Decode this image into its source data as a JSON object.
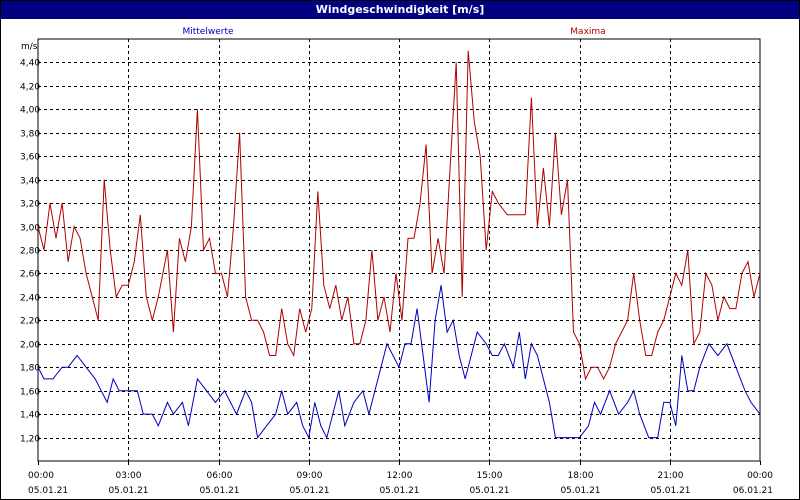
{
  "colors": {
    "titlebar": "#000080",
    "mean": "#0000c0",
    "max": "#b00000",
    "grid": "#000000"
  },
  "chart_data": {
    "type": "line",
    "title": "Windgeschwindigkeit [m/s]",
    "ylabel": "m/s",
    "grid": true,
    "ylim": [
      1.0,
      4.6
    ],
    "yticks": [
      1.2,
      1.4,
      1.6,
      1.8,
      2.0,
      2.2,
      2.4,
      2.6,
      2.8,
      3.0,
      3.2,
      3.4,
      3.6,
      3.8,
      4.0,
      4.2,
      4.4
    ],
    "ytick_labels": [
      "1,20",
      "1,40",
      "1,60",
      "1,80",
      "2,00",
      "2,20",
      "2,40",
      "2,60",
      "2,80",
      "3,00",
      "3,20",
      "3,40",
      "3,60",
      "3,80",
      "4,00",
      "4,20",
      "4,40"
    ],
    "xlim_hours": [
      0,
      24
    ],
    "xticks": [
      {
        "time": "00:00",
        "date": "05.01.21"
      },
      {
        "time": "03:00",
        "date": "05.01.21"
      },
      {
        "time": "06:00",
        "date": "05.01.21"
      },
      {
        "time": "09:00",
        "date": "05.01.21"
      },
      {
        "time": "12:00",
        "date": "05.01.21"
      },
      {
        "time": "15:00",
        "date": "05.01.21"
      },
      {
        "time": "18:00",
        "date": "05.01.21"
      },
      {
        "time": "21:00",
        "date": "05.01.21"
      },
      {
        "time": "00:00",
        "date": "06.01.21"
      }
    ],
    "legend_labels": {
      "mean": "Mittelwerte",
      "max": "Maxima"
    },
    "series": [
      {
        "name": "Mittelwerte",
        "points": [
          [
            0,
            1.8
          ],
          [
            0.2,
            1.7
          ],
          [
            0.5,
            1.7
          ],
          [
            0.8,
            1.8
          ],
          [
            1.0,
            1.8
          ],
          [
            1.3,
            1.9
          ],
          [
            1.6,
            1.8
          ],
          [
            1.9,
            1.7
          ],
          [
            2.1,
            1.6
          ],
          [
            2.3,
            1.5
          ],
          [
            2.5,
            1.7
          ],
          [
            2.7,
            1.6
          ],
          [
            3.0,
            1.6
          ],
          [
            3.3,
            1.6
          ],
          [
            3.5,
            1.4
          ],
          [
            3.8,
            1.4
          ],
          [
            4.0,
            1.3
          ],
          [
            4.3,
            1.5
          ],
          [
            4.5,
            1.4
          ],
          [
            4.8,
            1.5
          ],
          [
            5.0,
            1.3
          ],
          [
            5.3,
            1.7
          ],
          [
            5.6,
            1.6
          ],
          [
            5.9,
            1.5
          ],
          [
            6.2,
            1.6
          ],
          [
            6.4,
            1.5
          ],
          [
            6.6,
            1.4
          ],
          [
            6.9,
            1.6
          ],
          [
            7.1,
            1.5
          ],
          [
            7.3,
            1.2
          ],
          [
            7.6,
            1.3
          ],
          [
            7.9,
            1.4
          ],
          [
            8.1,
            1.6
          ],
          [
            8.3,
            1.4
          ],
          [
            8.6,
            1.5
          ],
          [
            8.8,
            1.3
          ],
          [
            9.0,
            1.2
          ],
          [
            9.2,
            1.5
          ],
          [
            9.4,
            1.3
          ],
          [
            9.6,
            1.2
          ],
          [
            9.8,
            1.4
          ],
          [
            10.0,
            1.6
          ],
          [
            10.2,
            1.3
          ],
          [
            10.5,
            1.5
          ],
          [
            10.8,
            1.6
          ],
          [
            11.0,
            1.4
          ],
          [
            11.2,
            1.6
          ],
          [
            11.4,
            1.8
          ],
          [
            11.6,
            2.0
          ],
          [
            11.8,
            1.9
          ],
          [
            12.0,
            1.8
          ],
          [
            12.2,
            2.0
          ],
          [
            12.4,
            2.0
          ],
          [
            12.6,
            2.3
          ],
          [
            12.8,
            1.9
          ],
          [
            13.0,
            1.5
          ],
          [
            13.2,
            2.2
          ],
          [
            13.4,
            2.5
          ],
          [
            13.6,
            2.1
          ],
          [
            13.8,
            2.2
          ],
          [
            14.0,
            1.9
          ],
          [
            14.2,
            1.7
          ],
          [
            14.4,
            1.9
          ],
          [
            14.6,
            2.1
          ],
          [
            14.9,
            2.0
          ],
          [
            15.1,
            1.9
          ],
          [
            15.3,
            1.9
          ],
          [
            15.5,
            2.0
          ],
          [
            15.8,
            1.8
          ],
          [
            16.0,
            2.1
          ],
          [
            16.2,
            1.7
          ],
          [
            16.4,
            2.0
          ],
          [
            16.6,
            1.9
          ],
          [
            16.8,
            1.7
          ],
          [
            17.0,
            1.5
          ],
          [
            17.2,
            1.2
          ],
          [
            17.5,
            1.2
          ],
          [
            17.8,
            1.2
          ],
          [
            18.0,
            1.2
          ],
          [
            18.3,
            1.3
          ],
          [
            18.5,
            1.5
          ],
          [
            18.7,
            1.4
          ],
          [
            19.0,
            1.6
          ],
          [
            19.3,
            1.4
          ],
          [
            19.6,
            1.5
          ],
          [
            19.8,
            1.6
          ],
          [
            20.0,
            1.4
          ],
          [
            20.3,
            1.2
          ],
          [
            20.6,
            1.2
          ],
          [
            20.8,
            1.5
          ],
          [
            21.0,
            1.5
          ],
          [
            21.2,
            1.3
          ],
          [
            21.4,
            1.9
          ],
          [
            21.6,
            1.6
          ],
          [
            21.8,
            1.6
          ],
          [
            22.0,
            1.8
          ],
          [
            22.3,
            2.0
          ],
          [
            22.6,
            1.9
          ],
          [
            22.9,
            2.0
          ],
          [
            23.2,
            1.8
          ],
          [
            23.5,
            1.6
          ],
          [
            23.7,
            1.5
          ],
          [
            24.0,
            1.4
          ]
        ]
      },
      {
        "name": "Maxima",
        "points": [
          [
            0,
            3.0
          ],
          [
            0.2,
            2.8
          ],
          [
            0.4,
            3.2
          ],
          [
            0.6,
            2.9
          ],
          [
            0.8,
            3.2
          ],
          [
            1.0,
            2.7
          ],
          [
            1.2,
            3.0
          ],
          [
            1.4,
            2.9
          ],
          [
            1.6,
            2.6
          ],
          [
            1.8,
            2.4
          ],
          [
            2.0,
            2.2
          ],
          [
            2.2,
            3.4
          ],
          [
            2.4,
            2.8
          ],
          [
            2.6,
            2.4
          ],
          [
            2.8,
            2.5
          ],
          [
            3.0,
            2.5
          ],
          [
            3.2,
            2.7
          ],
          [
            3.4,
            3.1
          ],
          [
            3.6,
            2.4
          ],
          [
            3.8,
            2.2
          ],
          [
            4.0,
            2.4
          ],
          [
            4.3,
            2.8
          ],
          [
            4.5,
            2.1
          ],
          [
            4.7,
            2.9
          ],
          [
            4.9,
            2.7
          ],
          [
            5.1,
            3.0
          ],
          [
            5.3,
            4.0
          ],
          [
            5.5,
            2.8
          ],
          [
            5.7,
            2.9
          ],
          [
            5.9,
            2.6
          ],
          [
            6.1,
            2.6
          ],
          [
            6.3,
            2.4
          ],
          [
            6.5,
            3.0
          ],
          [
            6.7,
            3.8
          ],
          [
            6.9,
            2.4
          ],
          [
            7.1,
            2.2
          ],
          [
            7.3,
            2.2
          ],
          [
            7.5,
            2.1
          ],
          [
            7.7,
            1.9
          ],
          [
            7.9,
            1.9
          ],
          [
            8.1,
            2.3
          ],
          [
            8.3,
            2.0
          ],
          [
            8.5,
            1.9
          ],
          [
            8.7,
            2.3
          ],
          [
            8.9,
            2.1
          ],
          [
            9.1,
            2.3
          ],
          [
            9.3,
            3.3
          ],
          [
            9.5,
            2.5
          ],
          [
            9.7,
            2.3
          ],
          [
            9.9,
            2.5
          ],
          [
            10.1,
            2.2
          ],
          [
            10.3,
            2.4
          ],
          [
            10.5,
            2.0
          ],
          [
            10.7,
            2.0
          ],
          [
            10.9,
            2.2
          ],
          [
            11.1,
            2.8
          ],
          [
            11.3,
            2.2
          ],
          [
            11.5,
            2.4
          ],
          [
            11.7,
            2.1
          ],
          [
            11.9,
            2.6
          ],
          [
            12.1,
            2.2
          ],
          [
            12.3,
            2.9
          ],
          [
            12.5,
            2.9
          ],
          [
            12.7,
            3.2
          ],
          [
            12.9,
            3.7
          ],
          [
            13.1,
            2.6
          ],
          [
            13.3,
            2.9
          ],
          [
            13.5,
            2.6
          ],
          [
            13.7,
            3.5
          ],
          [
            13.9,
            4.4
          ],
          [
            14.1,
            2.4
          ],
          [
            14.3,
            4.5
          ],
          [
            14.5,
            3.9
          ],
          [
            14.7,
            3.6
          ],
          [
            14.9,
            2.8
          ],
          [
            15.1,
            3.3
          ],
          [
            15.3,
            3.2
          ],
          [
            15.6,
            3.1
          ],
          [
            15.9,
            3.1
          ],
          [
            16.2,
            3.1
          ],
          [
            16.4,
            4.1
          ],
          [
            16.6,
            3.0
          ],
          [
            16.8,
            3.5
          ],
          [
            17.0,
            3.0
          ],
          [
            17.2,
            3.8
          ],
          [
            17.4,
            3.1
          ],
          [
            17.6,
            3.4
          ],
          [
            17.8,
            2.1
          ],
          [
            18.0,
            2.0
          ],
          [
            18.2,
            1.7
          ],
          [
            18.4,
            1.8
          ],
          [
            18.6,
            1.8
          ],
          [
            18.8,
            1.7
          ],
          [
            19.0,
            1.8
          ],
          [
            19.2,
            2.0
          ],
          [
            19.4,
            2.1
          ],
          [
            19.6,
            2.2
          ],
          [
            19.8,
            2.6
          ],
          [
            20.0,
            2.2
          ],
          [
            20.2,
            1.9
          ],
          [
            20.4,
            1.9
          ],
          [
            20.6,
            2.1
          ],
          [
            20.8,
            2.2
          ],
          [
            21.0,
            2.4
          ],
          [
            21.2,
            2.6
          ],
          [
            21.4,
            2.5
          ],
          [
            21.6,
            2.8
          ],
          [
            21.8,
            2.0
          ],
          [
            22.0,
            2.1
          ],
          [
            22.2,
            2.6
          ],
          [
            22.4,
            2.5
          ],
          [
            22.6,
            2.2
          ],
          [
            22.8,
            2.4
          ],
          [
            23.0,
            2.3
          ],
          [
            23.2,
            2.3
          ],
          [
            23.4,
            2.6
          ],
          [
            23.6,
            2.7
          ],
          [
            23.8,
            2.4
          ],
          [
            24.0,
            2.6
          ]
        ]
      }
    ]
  }
}
